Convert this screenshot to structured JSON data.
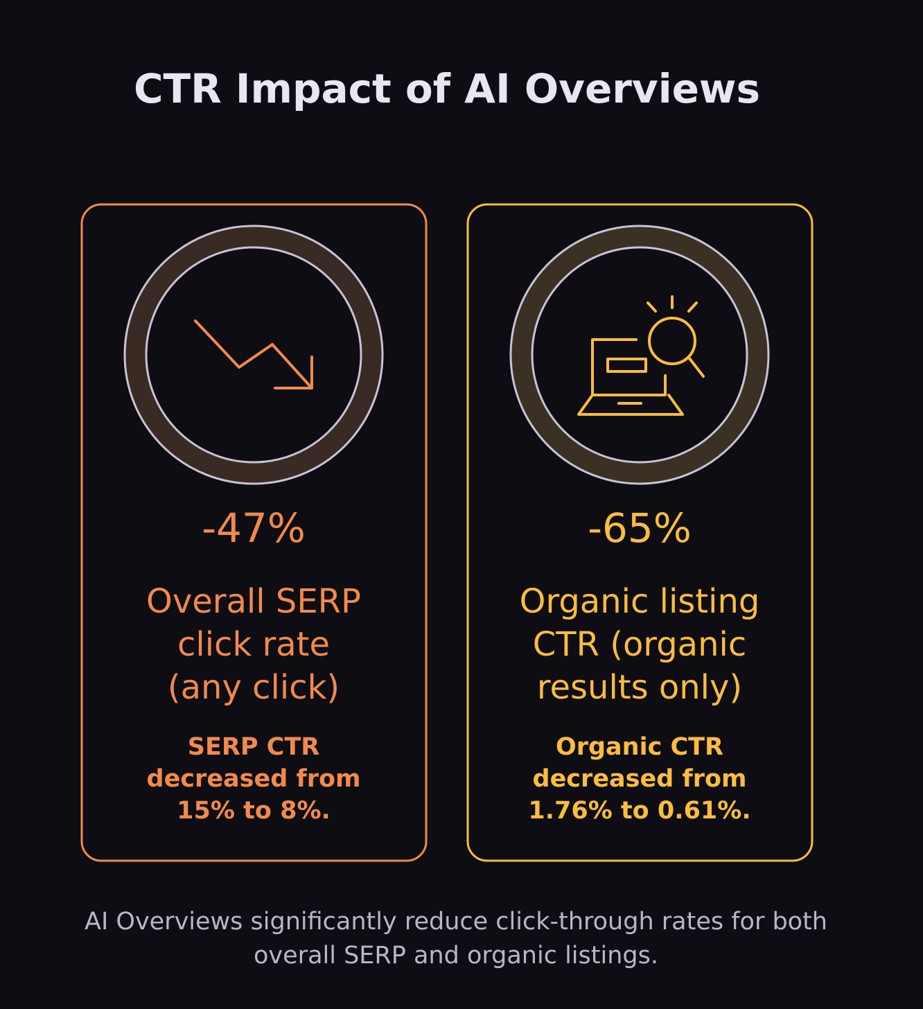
{
  "title": "CTR Impact of AI Overviews",
  "cards": [
    {
      "stat": "-47%",
      "label": [
        "Overall SERP",
        "click rate",
        "(any click)"
      ],
      "note": [
        "SERP CTR",
        "decreased from",
        "15% to 8%."
      ],
      "color": "#f28a4b",
      "ring": "#3a2a24"
    },
    {
      "stat": "-65%",
      "label": [
        "Organic listing",
        "CTR (organic",
        "results only)"
      ],
      "note": [
        "Organic CTR",
        "decreased from",
        "1.76% to 0.61%."
      ],
      "color": "#fbbd3c",
      "ring": "#3a3124"
    }
  ],
  "footer": [
    "AI Overviews significantly reduce click-through rates for both",
    "overall SERP and organic listings."
  ]
}
